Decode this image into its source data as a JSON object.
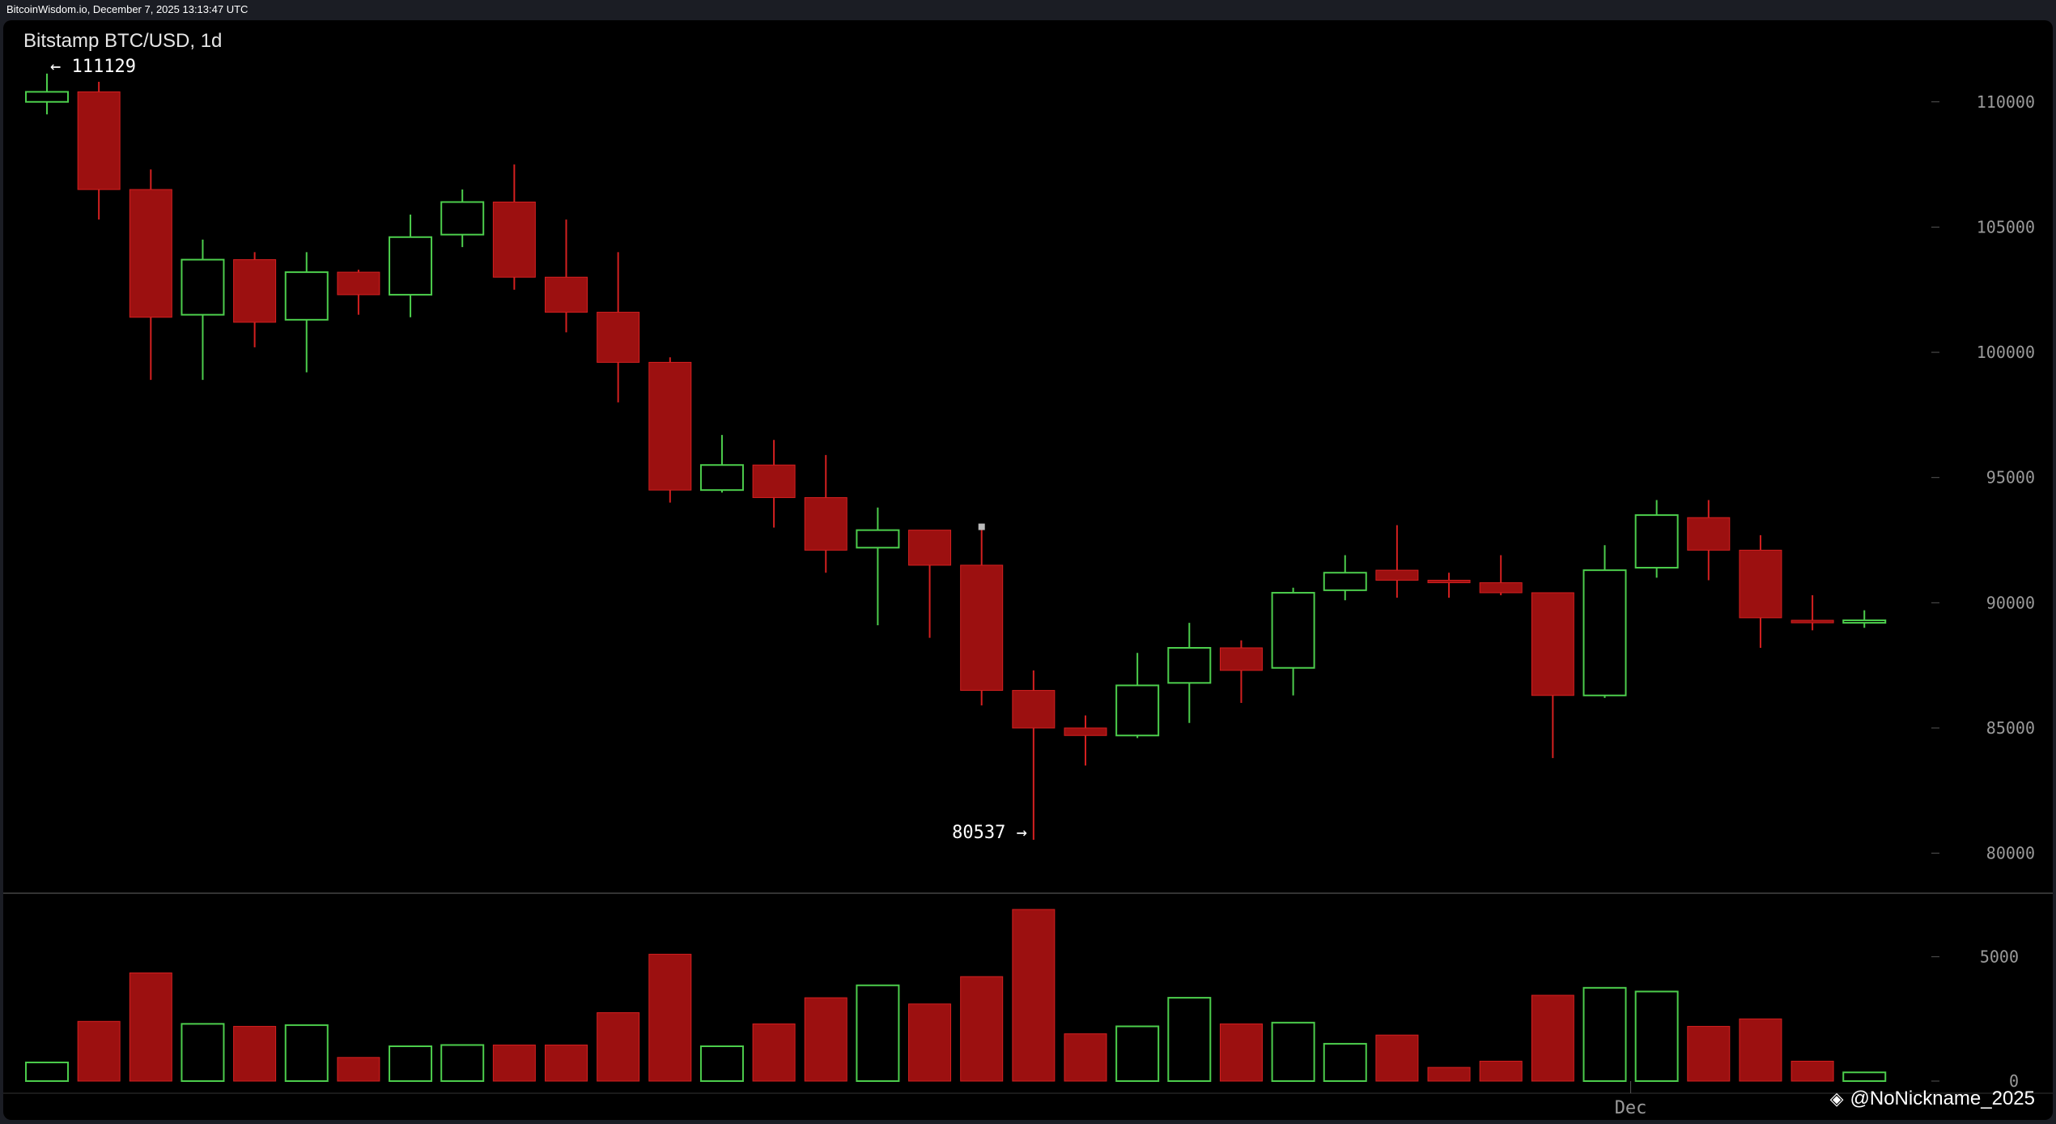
{
  "header": {
    "text": "BitcoinWisdom.io, December 7, 2025 13:13:47 UTC"
  },
  "watermark": {
    "icon": "binance-square-icon",
    "text": "@NoNickname_2025"
  },
  "colors": {
    "background": "#000000",
    "up": "#4ccd4c",
    "down": "#9c1010",
    "down_wick": "#d42020",
    "axis_text": "#9a9a9a",
    "label_text": "#ffffff"
  },
  "chart_data": {
    "type": "candlestick",
    "title": "Bitstamp BTC/USD, 1d",
    "ylim": [
      78500,
      113000
    ],
    "y_ticks": [
      80000,
      85000,
      90000,
      95000,
      100000,
      105000,
      110000
    ],
    "volume_ticks": [
      0,
      5000
    ],
    "volume_ylim": [
      0,
      8000
    ],
    "x_labels": [
      {
        "index": 30.5,
        "text": "Dec"
      }
    ],
    "high_marker": {
      "index": 0,
      "value": 111129,
      "text": "← 111129"
    },
    "low_marker": {
      "index": 19,
      "value": 80537,
      "text": "80537 →"
    },
    "candles": [
      {
        "o": 110000,
        "h": 111129,
        "l": 109500,
        "c": 110400,
        "v": 750
      },
      {
        "o": 110400,
        "h": 110800,
        "l": 105300,
        "c": 106500,
        "v": 2400
      },
      {
        "o": 106500,
        "h": 107300,
        "l": 98900,
        "c": 101400,
        "v": 4350
      },
      {
        "o": 101500,
        "h": 104500,
        "l": 98900,
        "c": 103700,
        "v": 2300
      },
      {
        "o": 103700,
        "h": 104000,
        "l": 100200,
        "c": 101200,
        "v": 2200
      },
      {
        "o": 101300,
        "h": 104000,
        "l": 99200,
        "c": 103200,
        "v": 2250
      },
      {
        "o": 103200,
        "h": 103300,
        "l": 101500,
        "c": 102300,
        "v": 950
      },
      {
        "o": 102300,
        "h": 105500,
        "l": 101400,
        "c": 104600,
        "v": 1400
      },
      {
        "o": 104700,
        "h": 106500,
        "l": 104200,
        "c": 106000,
        "v": 1450
      },
      {
        "o": 106000,
        "h": 107500,
        "l": 102500,
        "c": 103000,
        "v": 1450
      },
      {
        "o": 103000,
        "h": 105300,
        "l": 100800,
        "c": 101600,
        "v": 1450
      },
      {
        "o": 101600,
        "h": 104000,
        "l": 98000,
        "c": 99600,
        "v": 2750
      },
      {
        "o": 99600,
        "h": 99800,
        "l": 94000,
        "c": 94500,
        "v": 5100
      },
      {
        "o": 94500,
        "h": 96700,
        "l": 94400,
        "c": 95500,
        "v": 1400
      },
      {
        "o": 95500,
        "h": 96500,
        "l": 93000,
        "c": 94200,
        "v": 2300
      },
      {
        "o": 94200,
        "h": 95900,
        "l": 91200,
        "c": 92100,
        "v": 3350
      },
      {
        "o": 92200,
        "h": 93800,
        "l": 89100,
        "c": 92900,
        "v": 3850
      },
      {
        "o": 92900,
        "h": 92900,
        "l": 88600,
        "c": 91500,
        "v": 3100
      },
      {
        "o": 91500,
        "h": 93000,
        "l": 85900,
        "c": 86500,
        "v": 4200
      },
      {
        "o": 86500,
        "h": 87300,
        "l": 80537,
        "c": 85000,
        "v": 6900
      },
      {
        "o": 85000,
        "h": 85500,
        "l": 83500,
        "c": 84700,
        "v": 1900
      },
      {
        "o": 84700,
        "h": 88000,
        "l": 84600,
        "c": 86700,
        "v": 2200
      },
      {
        "o": 86800,
        "h": 89200,
        "l": 85200,
        "c": 88200,
        "v": 3350
      },
      {
        "o": 88200,
        "h": 88500,
        "l": 86000,
        "c": 87300,
        "v": 2300
      },
      {
        "o": 87400,
        "h": 90600,
        "l": 86300,
        "c": 90400,
        "v": 2350
      },
      {
        "o": 90500,
        "h": 91900,
        "l": 90100,
        "c": 91200,
        "v": 1500
      },
      {
        "o": 91300,
        "h": 93100,
        "l": 90200,
        "c": 90900,
        "v": 1850
      },
      {
        "o": 90900,
        "h": 91200,
        "l": 90200,
        "c": 90800,
        "v": 550
      },
      {
        "o": 90800,
        "h": 91900,
        "l": 90300,
        "c": 90400,
        "v": 800
      },
      {
        "o": 90400,
        "h": 90400,
        "l": 83800,
        "c": 86300,
        "v": 3450
      },
      {
        "o": 86300,
        "h": 92300,
        "l": 86200,
        "c": 91300,
        "v": 3750
      },
      {
        "o": 91400,
        "h": 94100,
        "l": 91000,
        "c": 93500,
        "v": 3600
      },
      {
        "o": 93400,
        "h": 94100,
        "l": 90900,
        "c": 92100,
        "v": 2200
      },
      {
        "o": 92100,
        "h": 92700,
        "l": 88200,
        "c": 89400,
        "v": 2500
      },
      {
        "o": 89300,
        "h": 90300,
        "l": 88900,
        "c": 89200,
        "v": 800
      },
      {
        "o": 89200,
        "h": 89700,
        "l": 89000,
        "c": 89300,
        "v": 350
      }
    ]
  }
}
